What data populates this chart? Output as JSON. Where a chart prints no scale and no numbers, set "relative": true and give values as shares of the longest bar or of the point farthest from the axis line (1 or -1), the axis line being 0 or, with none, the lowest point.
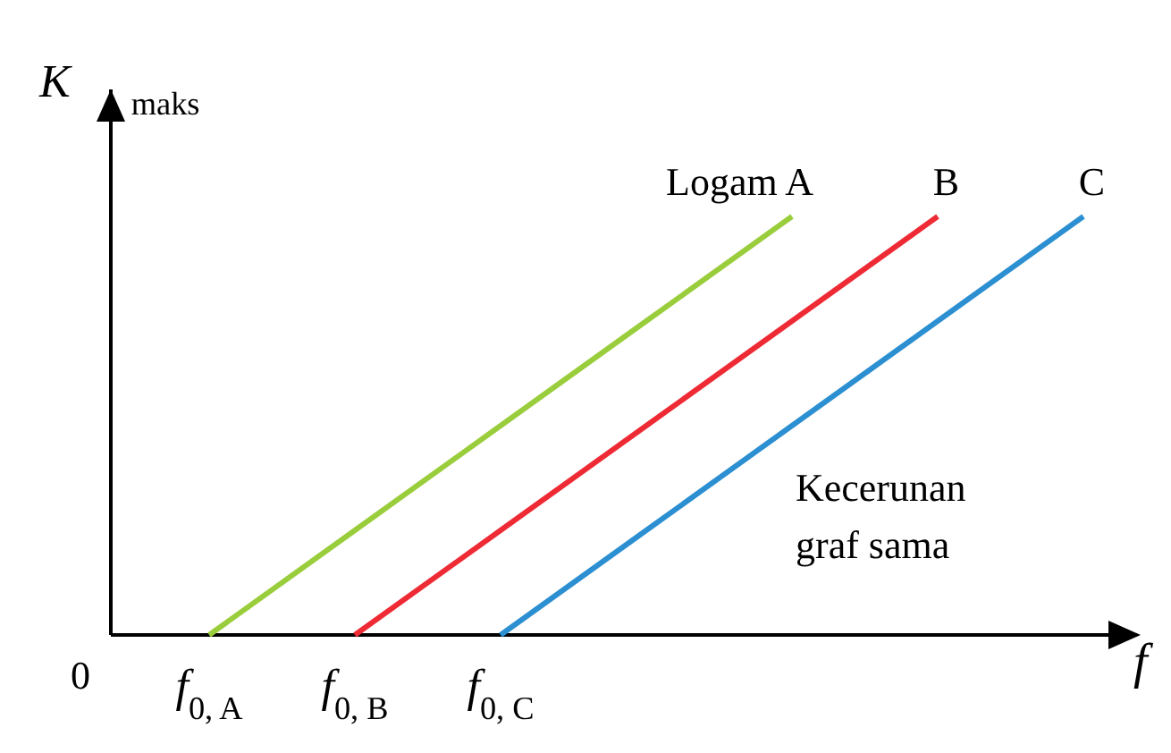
{
  "chart_data": {
    "type": "line",
    "relative": true,
    "xlabel": "f",
    "ylabel": "K$_{maks}$",
    "categories": [
      "f$_{0, A}$",
      "f$_{0, B}$",
      "f$_{0, C}$",
      null,
      null,
      null,
      null
    ],
    "series": [
      {
        "name": "Logam A",
        "color": "#9acd3c",
        "values": [
          0,
          0.25,
          0.5,
          0.75,
          1,
          null,
          null
        ]
      },
      {
        "name": "B",
        "color": "#ee2a35",
        "values": [
          null,
          0,
          0.25,
          0.5,
          0.75,
          1,
          null
        ]
      },
      {
        "name": "C",
        "color": "#2b8fd1",
        "values": [
          null,
          null,
          0,
          0.25,
          0.5,
          0.75,
          1
        ]
      }
    ],
    "annotations": [
      "0",
      "Kecerunan\ngraf sama"
    ],
    "grid": false,
    "marker": "none",
    "line_style": "solid"
  }
}
